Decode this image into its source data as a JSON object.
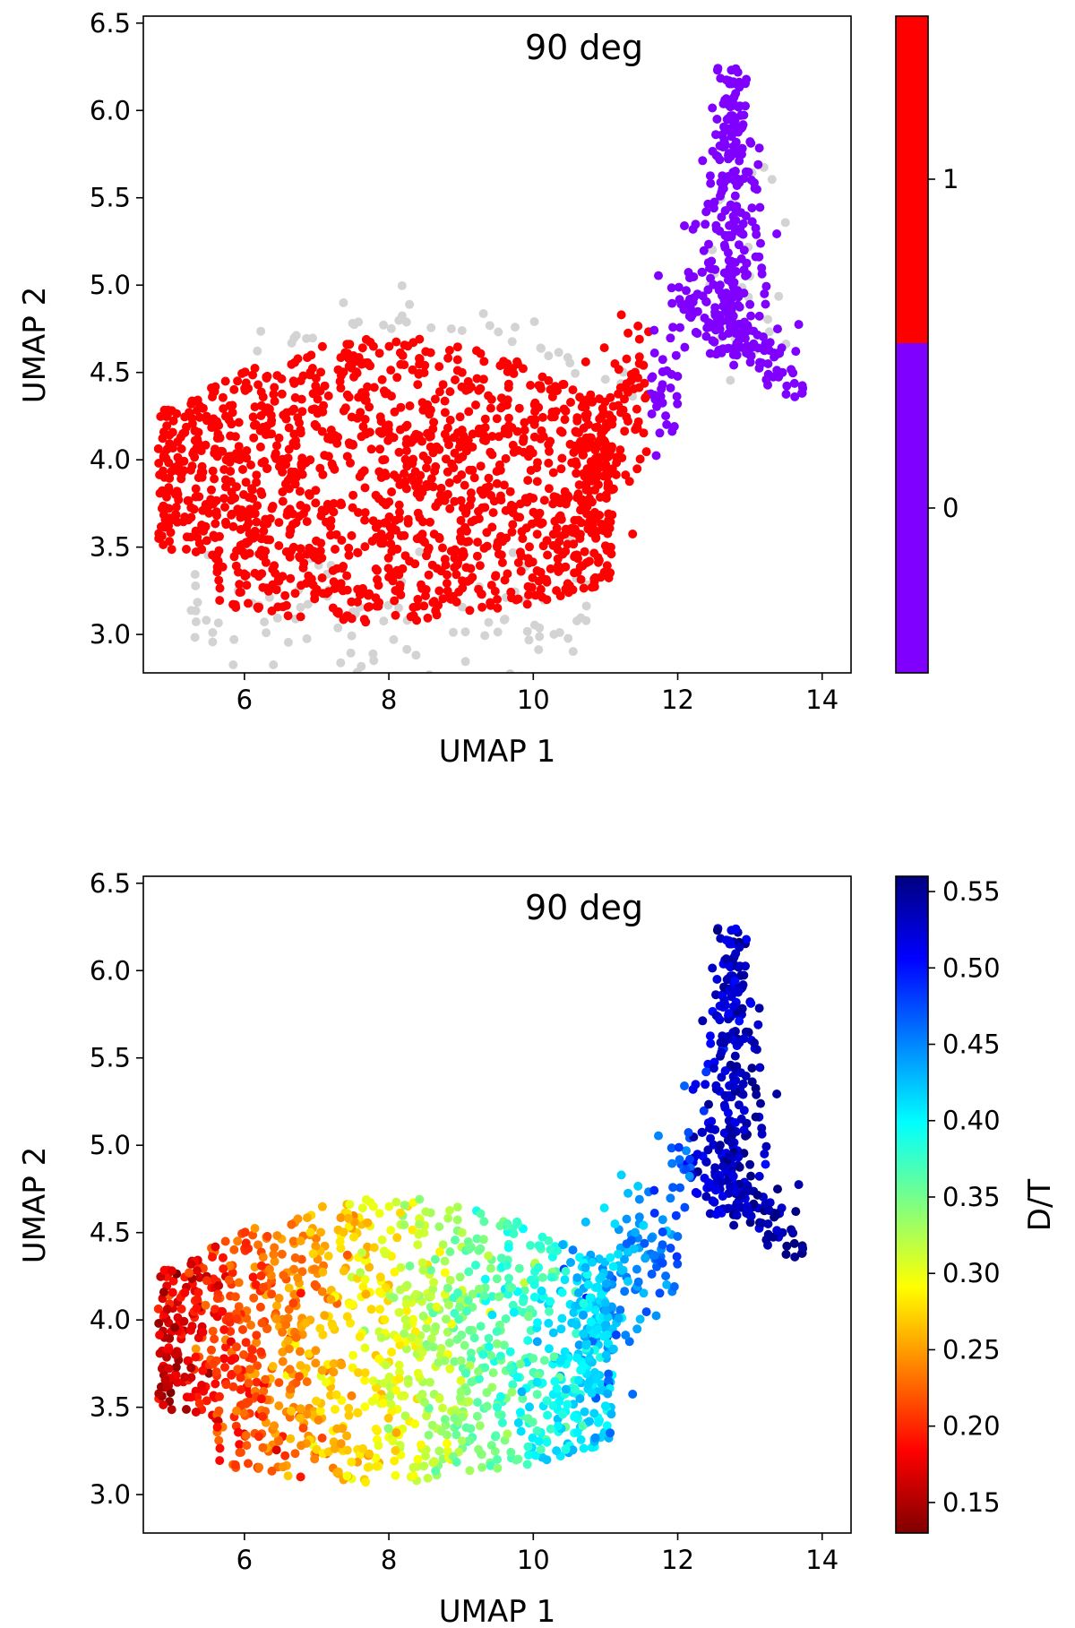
{
  "chart_data": [
    {
      "type": "scatter",
      "panel": "top",
      "annotation": "90 deg",
      "xlabel": "UMAP 1",
      "ylabel": "UMAP 2",
      "xlim": [
        4.6,
        14.4
      ],
      "ylim": [
        2.78,
        6.54
      ],
      "xticks": [
        6,
        8,
        10,
        12,
        14
      ],
      "yticks": [
        3.0,
        3.5,
        4.0,
        4.5,
        5.0,
        5.5,
        6.0,
        6.5
      ],
      "ytick_labels": [
        "3.0",
        "3.5",
        "4.0",
        "4.5",
        "5.0",
        "5.5",
        "6.0",
        "6.5"
      ],
      "colorbar": {
        "type": "categorical",
        "label": "",
        "categories": [
          {
            "label": "0",
            "color": "#7f00ff"
          },
          {
            "label": "1",
            "color": "#ff0000"
          }
        ]
      },
      "background_color": "#d3d3d3",
      "point_count_estimate": 1800
    },
    {
      "type": "scatter",
      "panel": "bottom",
      "annotation": "90 deg",
      "xlabel": "UMAP 1",
      "ylabel": "UMAP 2",
      "xlim": [
        4.6,
        14.4
      ],
      "ylim": [
        2.78,
        6.54
      ],
      "xticks": [
        6,
        8,
        10,
        12,
        14
      ],
      "yticks": [
        3.0,
        3.5,
        4.0,
        4.5,
        5.0,
        5.5,
        6.0,
        6.5
      ],
      "ytick_labels": [
        "3.0",
        "3.5",
        "4.0",
        "4.5",
        "5.0",
        "5.5",
        "6.0",
        "6.5"
      ],
      "colorbar": {
        "type": "continuous",
        "colormap": "jet",
        "label": "D/T",
        "range": [
          0.13,
          0.56
        ],
        "ticks": [
          0.15,
          0.2,
          0.25,
          0.3,
          0.35,
          0.4,
          0.45,
          0.5,
          0.55
        ],
        "tick_labels": [
          "0.15",
          "0.20",
          "0.25",
          "0.30",
          "0.35",
          "0.40",
          "0.45",
          "0.50",
          "0.55"
        ]
      },
      "point_count_estimate": 1800
    }
  ]
}
